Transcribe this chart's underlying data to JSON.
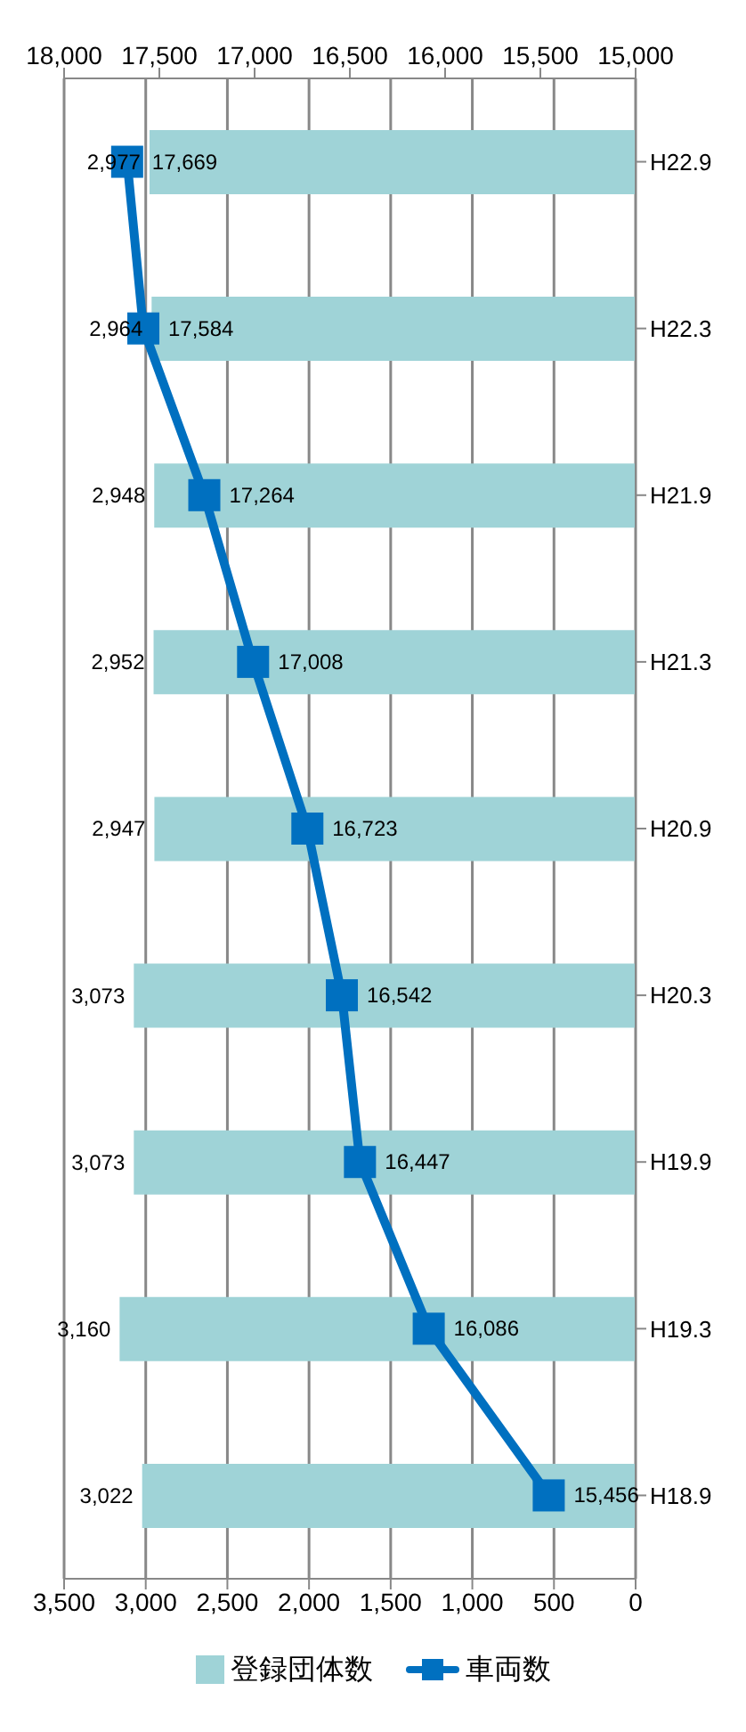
{
  "chart_data": {
    "type": "bar",
    "orientation": "horizontal",
    "categories": [
      "H22.9",
      "H22.3",
      "H21.9",
      "H21.3",
      "H20.9",
      "H20.3",
      "H19.9",
      "H19.3",
      "H18.9"
    ],
    "series": [
      {
        "name": "登録団体数",
        "color": "#9fd3d7",
        "values": [
          2977,
          2964,
          2948,
          2952,
          2947,
          3073,
          3073,
          3160,
          3022
        ],
        "value_labels": [
          "2,977",
          "2,964",
          "2,948",
          "2,952",
          "2,947",
          "3,073",
          "3,073",
          "3,160",
          "3,022"
        ]
      },
      {
        "name": "車両数",
        "type": "line",
        "axis": "x2",
        "color": "#0070c0",
        "marker": "square",
        "values": [
          17669,
          17584,
          17264,
          17008,
          16723,
          16542,
          16447,
          16086,
          15456
        ],
        "value_labels": [
          "17,669",
          "17,584",
          "17,264",
          "17,008",
          "16,723",
          "16,542",
          "16,447",
          "16,086",
          "15,456"
        ]
      }
    ],
    "xlim": [
      3500,
      0
    ],
    "xticks": [
      {
        "value": 3500,
        "label": "3,500"
      },
      {
        "value": 3000,
        "label": "3,000"
      },
      {
        "value": 2500,
        "label": "2,500"
      },
      {
        "value": 2000,
        "label": "2,000"
      },
      {
        "value": 1500,
        "label": "1,500"
      },
      {
        "value": 1000,
        "label": "1,000"
      },
      {
        "value": 500,
        "label": "500"
      },
      0
    ],
    "x2lim": [
      18000,
      15000
    ],
    "x2ticks": [
      {
        "value": 18000,
        "label": "18,000"
      },
      {
        "value": 17500,
        "label": "17,500"
      },
      {
        "value": 17000,
        "label": "17,000"
      },
      {
        "value": 16500,
        "label": "16,500"
      },
      {
        "value": 16000,
        "label": "16,000"
      },
      {
        "value": 15500,
        "label": "15,500"
      },
      {
        "value": 15000,
        "label": "15,000"
      }
    ],
    "grid": "x",
    "legend": "bottom"
  }
}
